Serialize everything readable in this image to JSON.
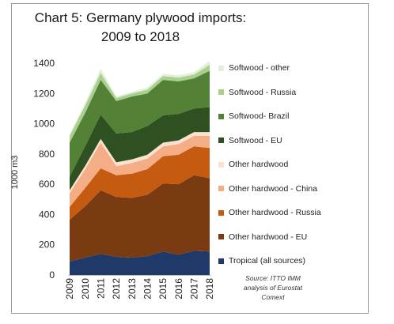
{
  "chart_data": {
    "type": "area",
    "stacked": true,
    "title": "Chart 5: Germany plywood imports:",
    "subtitle": "2009 to 2018",
    "ylabel": "1000 m3",
    "xlabel": "",
    "ylim": [
      0,
      1400
    ],
    "yticks": [
      "0",
      "200",
      "400",
      "600",
      "800",
      "1000",
      "1200",
      "1400"
    ],
    "categories": [
      "2009",
      "2010",
      "2011",
      "2012",
      "2013",
      "2014",
      "2015",
      "2016",
      "2017",
      "2018"
    ],
    "grid": false,
    "legend_position": "right",
    "series": [
      {
        "name": "Tropical (all sources)",
        "color": "#1f3a68",
        "values": [
          90,
          115,
          140,
          120,
          115,
          125,
          155,
          135,
          160,
          155
        ]
      },
      {
        "name": "Other hardwood - EU",
        "color": "#7a3a12",
        "values": [
          275,
          340,
          420,
          395,
          395,
          405,
          450,
          465,
          500,
          485
        ]
      },
      {
        "name": "Other hardwood - Russia",
        "color": "#c55a11",
        "values": [
          85,
          120,
          145,
          145,
          160,
          170,
          180,
          195,
          190,
          200
        ]
      },
      {
        "name": "Other hardwood - China",
        "color": "#f4ad84",
        "values": [
          90,
          125,
          170,
          60,
          70,
          70,
          65,
          70,
          70,
          80
        ]
      },
      {
        "name": "Other hardwood",
        "color": "#fbe1d0",
        "values": [
          20,
          22,
          25,
          25,
          25,
          25,
          25,
          25,
          25,
          25
        ]
      },
      {
        "name": "Softwood - EU",
        "color": "#2f5020",
        "values": [
          90,
          130,
          160,
          190,
          180,
          190,
          180,
          175,
          155,
          165
        ]
      },
      {
        "name": "Softwood- Brazil",
        "color": "#538135",
        "values": [
          225,
          220,
          230,
          215,
          235,
          215,
          235,
          215,
          200,
          240
        ]
      },
      {
        "name": "Softwood - Russia",
        "color": "#a9d08e",
        "values": [
          45,
          50,
          45,
          20,
          20,
          25,
          25,
          25,
          25,
          40
        ]
      },
      {
        "name": "Softwood - other",
        "color": "#e2efda",
        "values": [
          10,
          15,
          30,
          10,
          10,
          15,
          15,
          15,
          15,
          25
        ]
      }
    ],
    "source": [
      "Source: ITTO IMM",
      "analysis of Eurostat",
      "Comext"
    ]
  }
}
